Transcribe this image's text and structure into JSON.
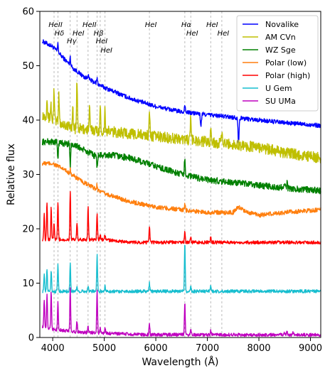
{
  "chart_data": {
    "type": "line",
    "title": "",
    "xlabel": "Wavelength (Å)",
    "ylabel": "Relative flux",
    "xlim": [
      3750,
      9200
    ],
    "ylim": [
      0,
      60
    ],
    "x_ticks": [
      4000,
      5000,
      6000,
      7000,
      8000,
      9000
    ],
    "y_ticks": [
      0,
      10,
      20,
      30,
      40,
      50,
      60
    ],
    "grid": false,
    "legend_position": "top-right",
    "line_markers": [
      {
        "label": "HeII",
        "wavelength": 4026,
        "row": 0
      },
      {
        "label": "Hδ",
        "wavelength": 4101,
        "row": 1
      },
      {
        "label": "Hγ",
        "wavelength": 4340,
        "row": 2
      },
      {
        "label": "HeI",
        "wavelength": 4471,
        "row": 1
      },
      {
        "label": "HeII",
        "wavelength": 4686,
        "row": 0
      },
      {
        "label": "Hβ",
        "wavelength": 4861,
        "row": 1
      },
      {
        "label": "HeI",
        "wavelength": 4922,
        "row": 2
      },
      {
        "label": "HeI",
        "wavelength": 5015,
        "row": 3
      },
      {
        "label": "HeI",
        "wavelength": 5876,
        "row": 0
      },
      {
        "label": "Hα",
        "wavelength": 6563,
        "row": 0
      },
      {
        "label": "HeI",
        "wavelength": 6678,
        "row": 1
      },
      {
        "label": "HeI",
        "wavelength": 7065,
        "row": 0
      },
      {
        "label": "HeI",
        "wavelength": 7281,
        "row": 1
      }
    ],
    "series": [
      {
        "name": "Novalike",
        "color": "#0000ff",
        "continuum": [
          [
            3800,
            54.5
          ],
          [
            4000,
            53.5
          ],
          [
            4200,
            51.5
          ],
          [
            4400,
            49.5
          ],
          [
            4600,
            48
          ],
          [
            4800,
            47
          ],
          [
            5000,
            46
          ],
          [
            5500,
            44
          ],
          [
            6000,
            42.5
          ],
          [
            6500,
            41.5
          ],
          [
            7000,
            41
          ],
          [
            7500,
            40.5
          ],
          [
            8000,
            40
          ],
          [
            8500,
            39.5
          ],
          [
            9200,
            39
          ]
        ],
        "lines": [
          [
            4101,
            1.5
          ],
          [
            4340,
            1.5
          ],
          [
            4686,
            1
          ],
          [
            4861,
            1
          ],
          [
            6563,
            1.5
          ],
          [
            6870,
            -1.2
          ],
          [
            6880,
            -1.5
          ],
          [
            7600,
            -2.5
          ],
          [
            7610,
            -3
          ]
        ],
        "noise": 0.4
      },
      {
        "name": "AM CVn",
        "color": "#bfbf00",
        "continuum": [
          [
            3800,
            41
          ],
          [
            4000,
            40
          ],
          [
            4400,
            38.5
          ],
          [
            5000,
            38
          ],
          [
            5500,
            37.5
          ],
          [
            6000,
            37
          ],
          [
            6500,
            36.5
          ],
          [
            7000,
            36
          ],
          [
            7500,
            35.5
          ],
          [
            8000,
            35
          ],
          [
            8500,
            34
          ],
          [
            9200,
            33
          ]
        ],
        "lines": [
          [
            3889,
            4
          ],
          [
            3965,
            3
          ],
          [
            4026,
            6
          ],
          [
            4120,
            5
          ],
          [
            4388,
            4
          ],
          [
            4471,
            9
          ],
          [
            4713,
            4
          ],
          [
            4922,
            4
          ],
          [
            5015,
            4
          ],
          [
            5876,
            5
          ],
          [
            6678,
            4
          ],
          [
            7065,
            3
          ],
          [
            7281,
            2
          ]
        ],
        "noise": 1.0
      },
      {
        "name": "WZ Sge",
        "color": "#008000",
        "continuum": [
          [
            3800,
            36
          ],
          [
            4000,
            36
          ],
          [
            4400,
            35.5
          ],
          [
            4800,
            33.5
          ],
          [
            5000,
            33.5
          ],
          [
            5200,
            33.5
          ],
          [
            5500,
            33
          ],
          [
            6000,
            31.5
          ],
          [
            6500,
            30
          ],
          [
            7000,
            29
          ],
          [
            7500,
            28.5
          ],
          [
            8000,
            28
          ],
          [
            8500,
            27.5
          ],
          [
            9200,
            27
          ]
        ],
        "lines": [
          [
            4101,
            -3
          ],
          [
            4340,
            -4
          ],
          [
            4861,
            -2.5
          ],
          [
            6563,
            3.5
          ],
          [
            8500,
            1
          ],
          [
            8545,
            1
          ]
        ],
        "noise": 0.6
      },
      {
        "name": "Polar (low)",
        "color": "#ff7f0e",
        "continuum": [
          [
            3800,
            32
          ],
          [
            4000,
            32
          ],
          [
            4200,
            31
          ],
          [
            4600,
            28.5
          ],
          [
            5000,
            26.5
          ],
          [
            5500,
            25
          ],
          [
            6000,
            24
          ],
          [
            6500,
            23.5
          ],
          [
            7000,
            23
          ],
          [
            7500,
            23
          ],
          [
            7600,
            24
          ],
          [
            7800,
            23
          ],
          [
            8000,
            22.5
          ],
          [
            8500,
            23
          ],
          [
            9200,
            23.5
          ]
        ],
        "lines": [
          [
            4340,
            1
          ],
          [
            4861,
            1
          ],
          [
            6563,
            1
          ]
        ],
        "noise": 0.4
      },
      {
        "name": "Polar (high)",
        "color": "#ff0000",
        "continuum": [
          [
            3800,
            18
          ],
          [
            4000,
            18
          ],
          [
            4500,
            18
          ],
          [
            5000,
            18
          ],
          [
            5500,
            17.5
          ],
          [
            6000,
            17.5
          ],
          [
            7000,
            17.5
          ],
          [
            8000,
            17.5
          ],
          [
            9200,
            17.5
          ]
        ],
        "lines": [
          [
            3835,
            5
          ],
          [
            3889,
            7
          ],
          [
            3970,
            6
          ],
          [
            4026,
            3
          ],
          [
            4101,
            7
          ],
          [
            4340,
            9
          ],
          [
            4471,
            3
          ],
          [
            4686,
            6
          ],
          [
            4861,
            5
          ],
          [
            4922,
            1
          ],
          [
            5015,
            1
          ],
          [
            5876,
            3
          ],
          [
            6563,
            2
          ],
          [
            6678,
            1
          ],
          [
            7065,
            1
          ]
        ],
        "noise": 0.3
      },
      {
        "name": "U Gem",
        "color": "#17becf",
        "continuum": [
          [
            3800,
            8.5
          ],
          [
            4000,
            8.5
          ],
          [
            4500,
            8.5
          ],
          [
            5000,
            8.5
          ],
          [
            5500,
            8.5
          ],
          [
            6000,
            8.5
          ],
          [
            6500,
            8.5
          ],
          [
            7000,
            8.5
          ],
          [
            7500,
            8.5
          ],
          [
            8000,
            8.5
          ],
          [
            8500,
            8.5
          ],
          [
            9200,
            8.5
          ]
        ],
        "lines": [
          [
            3835,
            3
          ],
          [
            3889,
            4
          ],
          [
            3970,
            4
          ],
          [
            4101,
            5
          ],
          [
            4340,
            5
          ],
          [
            4471,
            1
          ],
          [
            4686,
            1
          ],
          [
            4861,
            7
          ],
          [
            5015,
            1
          ],
          [
            5876,
            1.5
          ],
          [
            6563,
            9
          ],
          [
            6678,
            1
          ],
          [
            7065,
            1
          ]
        ],
        "noise": 0.3
      },
      {
        "name": "SU UMa",
        "color": "#bf00bf",
        "continuum": [
          [
            3800,
            2
          ],
          [
            4000,
            1.5
          ],
          [
            4500,
            1
          ],
          [
            5000,
            0.8
          ],
          [
            5500,
            0.6
          ],
          [
            6000,
            0.5
          ],
          [
            7000,
            0.5
          ],
          [
            8000,
            0.5
          ],
          [
            9200,
            0.5
          ]
        ],
        "lines": [
          [
            3835,
            5
          ],
          [
            3889,
            6
          ],
          [
            3970,
            7
          ],
          [
            4101,
            5
          ],
          [
            4340,
            8
          ],
          [
            4471,
            2
          ],
          [
            4686,
            1
          ],
          [
            4861,
            8
          ],
          [
            4922,
            1
          ],
          [
            5015,
            1
          ],
          [
            5876,
            2
          ],
          [
            6563,
            6
          ],
          [
            6678,
            1
          ],
          [
            7065,
            0.8
          ],
          [
            8500,
            0.5
          ],
          [
            8545,
            0.5
          ],
          [
            8665,
            0.5
          ]
        ],
        "noise": 0.3
      }
    ]
  }
}
